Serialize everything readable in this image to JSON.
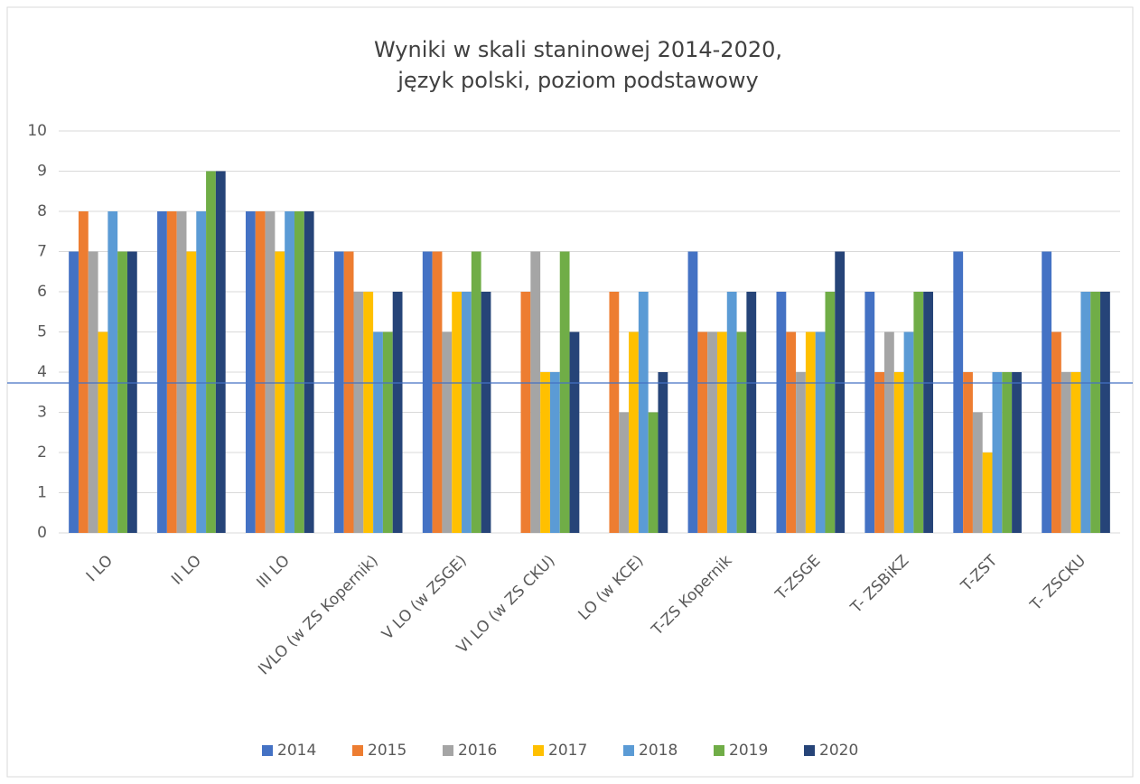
{
  "chart_data": {
    "type": "bar",
    "title": [
      "Wyniki w skali staninowej 2014-2020,",
      "język polski, poziom podstawowy"
    ],
    "categories": [
      "I LO",
      "II LO",
      "III LO",
      "IVLO (w ZS Kopernik)",
      "V LO (w ZSGE)",
      "VI LO (w ZS CKU)",
      "LO (w KCE)",
      "T-ZS Kopernik",
      "T-ZSGE",
      "T- ZSBiKZ",
      "T-ZST",
      "T- ZSCKU"
    ],
    "series": [
      {
        "name": "2014",
        "color": "#4472c4",
        "values": [
          7,
          8,
          8,
          7,
          7,
          null,
          null,
          7,
          6,
          6,
          7,
          7
        ]
      },
      {
        "name": "2015",
        "color": "#ed7d31",
        "values": [
          8,
          8,
          8,
          7,
          7,
          6,
          6,
          5,
          5,
          4,
          4,
          5
        ]
      },
      {
        "name": "2016",
        "color": "#a5a5a5",
        "values": [
          7,
          8,
          8,
          6,
          5,
          7,
          3,
          5,
          4,
          5,
          3,
          4
        ]
      },
      {
        "name": "2017",
        "color": "#ffc000",
        "values": [
          5,
          7,
          7,
          6,
          6,
          4,
          5,
          5,
          5,
          4,
          2,
          4
        ]
      },
      {
        "name": "2018",
        "color": "#5b9bd5",
        "values": [
          8,
          8,
          8,
          5,
          6,
          4,
          6,
          6,
          5,
          5,
          4,
          6
        ]
      },
      {
        "name": "2019",
        "color": "#70ad47",
        "values": [
          7,
          9,
          8,
          5,
          7,
          7,
          3,
          5,
          6,
          6,
          4,
          6
        ]
      },
      {
        "name": "2020",
        "color": "#264478",
        "values": [
          7,
          9,
          8,
          6,
          6,
          5,
          4,
          6,
          7,
          6,
          4,
          6
        ]
      }
    ],
    "ylim": [
      0,
      10
    ],
    "yticks": [
      0,
      1,
      2,
      3,
      4,
      5,
      6,
      7,
      8,
      9,
      10
    ],
    "grid": true,
    "reference_line": {
      "value": 3.73,
      "color": "#4472c4"
    },
    "legend": "bottom"
  }
}
